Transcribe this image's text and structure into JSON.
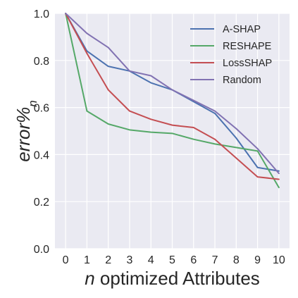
{
  "chart_data": {
    "type": "line",
    "x": [
      0,
      1,
      2,
      3,
      4,
      5,
      6,
      7,
      8,
      9,
      10
    ],
    "x_tick_labels": [
      "0",
      "1",
      "2",
      "3",
      "4",
      "5",
      "6",
      "7",
      "8",
      "9",
      "10"
    ],
    "y_tick_labels": [
      "0.0",
      "0.2",
      "0.4",
      "0.6",
      "0.8",
      "1.0"
    ],
    "y_ticks": [
      0.0,
      0.2,
      0.4,
      0.6,
      0.8,
      1.0
    ],
    "xlabel_italic": "n",
    "xlabel_rest": " optimized Attributes",
    "ylabel_main": "error%",
    "ylabel_sub": "n",
    "xlim": [
      -0.5,
      10.5
    ],
    "ylim": [
      0.0,
      1.0
    ],
    "grid": true,
    "legend_position": "top-right",
    "series": [
      {
        "name": "A-SHAP",
        "color": "#4c72b0",
        "values": [
          1.0,
          0.84,
          0.775,
          0.755,
          0.705,
          0.675,
          0.625,
          0.575,
          0.47,
          0.345,
          0.33
        ]
      },
      {
        "name": "RESHAPE",
        "color": "#55a868",
        "values": [
          1.0,
          0.585,
          0.53,
          0.505,
          0.495,
          0.49,
          0.465,
          0.445,
          0.43,
          0.415,
          0.26
        ]
      },
      {
        "name": "LossSHAP",
        "color": "#c44e52",
        "values": [
          1.0,
          0.83,
          0.675,
          0.585,
          0.55,
          0.525,
          0.515,
          0.465,
          0.385,
          0.305,
          0.295
        ]
      },
      {
        "name": "Random",
        "color": "#8172b2",
        "values": [
          1.0,
          0.915,
          0.855,
          0.755,
          0.735,
          0.675,
          0.63,
          0.585,
          0.51,
          0.425,
          0.32
        ]
      }
    ]
  }
}
